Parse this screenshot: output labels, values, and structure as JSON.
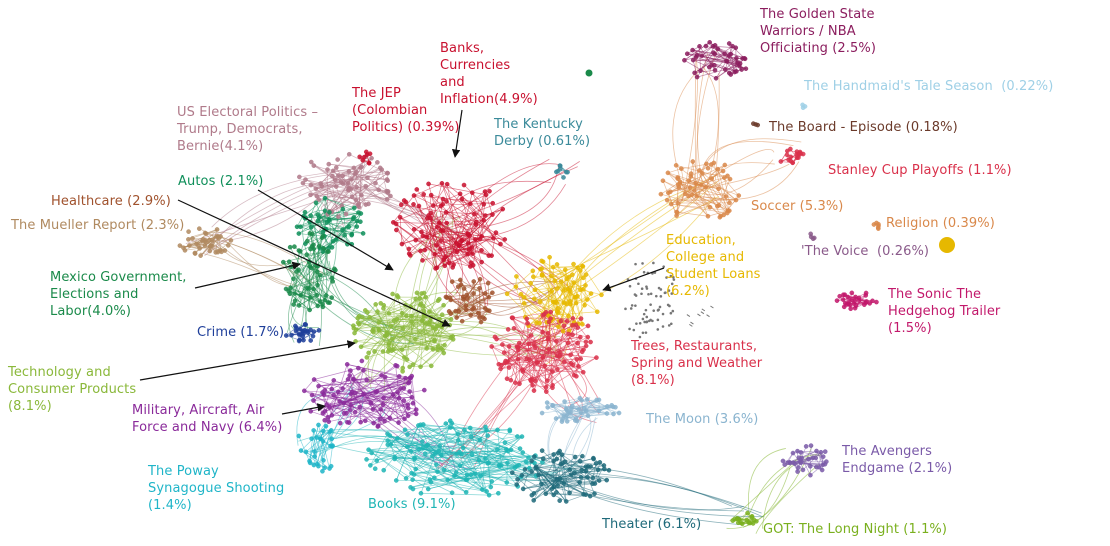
{
  "chart_data": {
    "type": "network",
    "communities": [
      {
        "id": "warriors",
        "label": "The Golden State\nWarriors / NBA\nOfficiating (2.5%)",
        "share_pct": 2.5,
        "color": "#8b1d5e"
      },
      {
        "id": "handmaid",
        "label": "The Handmaid's Tale Season  (0.22%)",
        "share_pct": 0.22,
        "color": "#9fd0e6"
      },
      {
        "id": "board",
        "label": "The Board - Episode (0.18%)",
        "share_pct": 0.18,
        "color": "#6b3a2a"
      },
      {
        "id": "stanley",
        "label": "Stanley Cup Playoffs (1.1%)",
        "share_pct": 1.1,
        "color": "#d9304a"
      },
      {
        "id": "soccer",
        "label": "Soccer (5.3%)",
        "share_pct": 5.3,
        "color": "#d9884a"
      },
      {
        "id": "religion",
        "label": "Religion (0.39%)",
        "share_pct": 0.39,
        "color": "#d9884a"
      },
      {
        "id": "voice",
        "label": "'The Voice  (0.26%)",
        "share_pct": 0.26,
        "color": "#8a5a8a"
      },
      {
        "id": "sonic",
        "label": "The Sonic The\nHedgehog Trailer\n(1.5%)",
        "share_pct": 1.5,
        "color": "#c2186b"
      },
      {
        "id": "education",
        "label": "Education,\nCollege and\nStudent Loans\n(6.2%)",
        "share_pct": 6.2,
        "color": "#e6b800"
      },
      {
        "id": "trees",
        "label": "Trees, Restaurants,\nSpring and Weather\n(8.1%)",
        "share_pct": 8.1,
        "color": "#d9304a"
      },
      {
        "id": "moon",
        "label": "The Moon (3.6%)",
        "share_pct": 3.6,
        "color": "#8ab4cf"
      },
      {
        "id": "avengers",
        "label": "The Avengers\nEndgame (2.1%)",
        "share_pct": 2.1,
        "color": "#7a5aa8"
      },
      {
        "id": "got",
        "label": "GOT: The Long Night (1.1%)",
        "share_pct": 1.1,
        "color": "#7ab01e"
      },
      {
        "id": "theater",
        "label": "Theater (6.1%)",
        "share_pct": 6.1,
        "color": "#1f6a7a"
      },
      {
        "id": "books",
        "label": "Books (9.1%)",
        "share_pct": 9.1,
        "color": "#1fb5b5"
      },
      {
        "id": "poway",
        "label": "The Poway\nSynagogue Shooting\n(1.4%)",
        "share_pct": 1.4,
        "color": "#1fb5c8"
      },
      {
        "id": "military",
        "label": "Military, Aircraft, Air\nForce and Navy (6.4%)",
        "share_pct": 6.4,
        "color": "#8a2a9a"
      },
      {
        "id": "technology",
        "label": "Technology and\nConsumer Products\n(8.1%)",
        "share_pct": 8.1,
        "color": "#8ab83a"
      },
      {
        "id": "crime",
        "label": "Crime (1.7%)",
        "share_pct": 1.7,
        "color": "#1f3f9a"
      },
      {
        "id": "mexico",
        "label": "Mexico Government,\nElections and\nLabor(4.0%)",
        "share_pct": 4.0,
        "color": "#1a8a4a"
      },
      {
        "id": "mueller",
        "label": "The Mueller Report (2.3%)",
        "share_pct": 2.3,
        "color": "#b08a60"
      },
      {
        "id": "healthcare",
        "label": "Healthcare (2.9%)",
        "share_pct": 2.9,
        "color": "#a0522d"
      },
      {
        "id": "autos",
        "label": "Autos (2.1%)",
        "share_pct": 2.1,
        "color": "#0f8f5a"
      },
      {
        "id": "uspolitics",
        "label": "US Electoral Politics –\nTrump, Democrats,\nBernie(4.1%)",
        "share_pct": 4.1,
        "color": "#b07a8a"
      },
      {
        "id": "jep",
        "label": "The JEP\n(Colombian\nPolitics) (0.39%)",
        "share_pct": 0.39,
        "color": "#c8102e"
      },
      {
        "id": "banks",
        "label": "Banks,\nCurrencies\nand\nInflation(4.9%)",
        "share_pct": 4.9,
        "color": "#c8102e"
      },
      {
        "id": "kentucky",
        "label": "The Kentucky\nDerby (0.61%)",
        "share_pct": 0.61,
        "color": "#3a8a9a"
      }
    ]
  }
}
